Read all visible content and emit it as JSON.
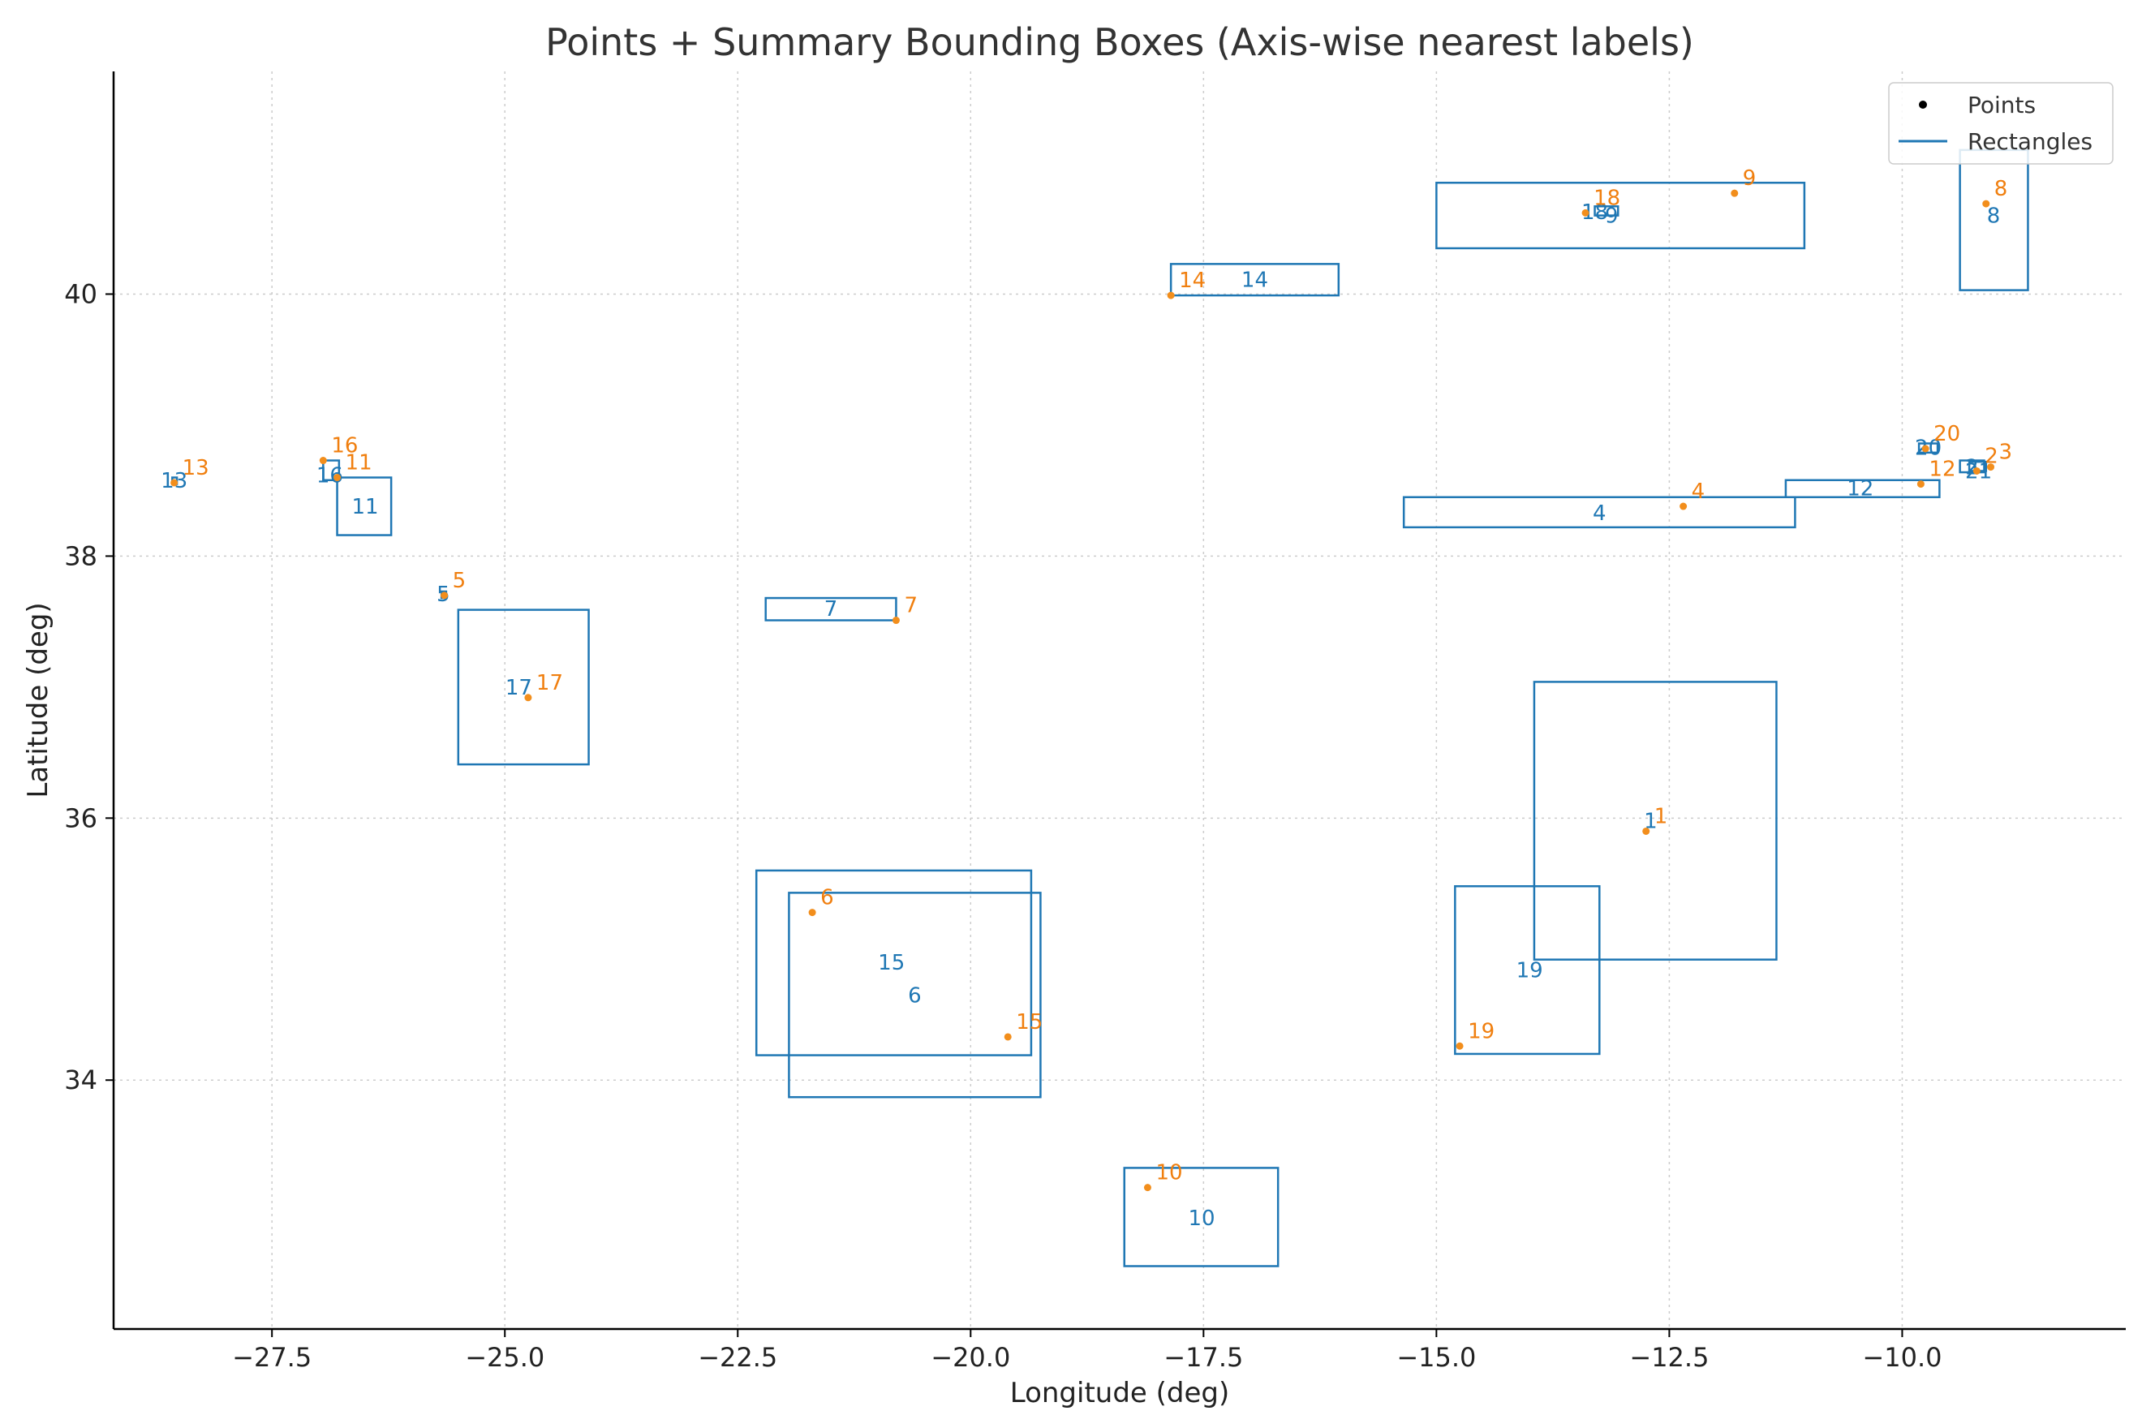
{
  "chart_data": {
    "type": "scatter",
    "title": "Points + Summary Bounding Boxes (Axis-wise nearest labels)",
    "xlabel": "Longitude (deg)",
    "ylabel": "Latitude (deg)",
    "xlim": [
      -29.2,
      -7.6
    ],
    "ylim": [
      32.1,
      41.7
    ],
    "xticks": [
      -27.5,
      -25.0,
      -22.5,
      -20.0,
      -17.5,
      -15.0,
      -12.5,
      -10.0
    ],
    "xtick_labels": [
      "−27.5",
      "−25.0",
      "−22.5",
      "−20.0",
      "−17.5",
      "−15.0",
      "−12.5",
      "−10.0"
    ],
    "yticks": [
      34,
      36,
      38,
      40
    ],
    "ytick_labels": [
      "34",
      "36",
      "38",
      "40"
    ],
    "grid": true,
    "legend_position": "top-right",
    "legend": [
      {
        "label": "Points",
        "kind": "marker"
      },
      {
        "label": "Rectangles",
        "kind": "line"
      }
    ],
    "colors": {
      "points": "#f28e1c",
      "point_labels": "#f07f0f",
      "rectangles": "#1f77b4"
    },
    "points": [
      {
        "label": "1",
        "x": -12.75,
        "y": 35.9
      },
      {
        "label": "2",
        "x": -9.2,
        "y": 38.65
      },
      {
        "label": "3",
        "x": -9.05,
        "y": 38.68
      },
      {
        "label": "4",
        "x": -12.35,
        "y": 38.38
      },
      {
        "label": "5",
        "x": -25.65,
        "y": 37.7
      },
      {
        "label": "6",
        "x": -21.7,
        "y": 35.28
      },
      {
        "label": "7",
        "x": -20.8,
        "y": 37.51
      },
      {
        "label": "8",
        "x": -9.1,
        "y": 40.69
      },
      {
        "label": "9",
        "x": -11.8,
        "y": 40.77
      },
      {
        "label": "10",
        "x": -18.1,
        "y": 33.18
      },
      {
        "label": "11",
        "x": -26.8,
        "y": 38.6
      },
      {
        "label": "12",
        "x": -9.8,
        "y": 38.55
      },
      {
        "label": "13",
        "x": -28.55,
        "y": 38.56
      },
      {
        "label": "14",
        "x": -17.85,
        "y": 39.99
      },
      {
        "label": "15",
        "x": -19.6,
        "y": 34.33
      },
      {
        "label": "16",
        "x": -26.95,
        "y": 38.73
      },
      {
        "label": "17",
        "x": -24.75,
        "y": 36.92
      },
      {
        "label": "18",
        "x": -13.4,
        "y": 40.62
      },
      {
        "label": "19",
        "x": -14.75,
        "y": 34.26
      },
      {
        "label": "20",
        "x": -9.75,
        "y": 38.82
      }
    ],
    "rectangles": [
      {
        "label": "1",
        "x0": -13.95,
        "x1": -11.35,
        "y0": 34.92,
        "y1": 37.04,
        "label_x": -12.7,
        "label_y": 35.98
      },
      {
        "label": "2",
        "x0": -9.38,
        "x1": -9.12,
        "y0": 38.64,
        "y1": 38.73,
        "label_x": -9.25,
        "label_y": 38.68
      },
      {
        "label": "4",
        "x0": -15.35,
        "x1": -11.15,
        "y0": 38.22,
        "y1": 38.45,
        "label_x": -13.25,
        "label_y": 38.33
      },
      {
        "label": "5",
        "x0": -25.68,
        "x1": -25.63,
        "y0": 37.68,
        "y1": 37.73,
        "label_x": -25.66,
        "label_y": 37.71
      },
      {
        "label": "6",
        "x0": -21.95,
        "x1": -19.25,
        "y0": 33.87,
        "y1": 35.43,
        "label_x": -20.6,
        "label_y": 34.65
      },
      {
        "label": "7",
        "x0": -22.2,
        "x1": -20.8,
        "y0": 37.51,
        "y1": 37.68,
        "label_x": -21.5,
        "label_y": 37.6
      },
      {
        "label": "8",
        "x0": -9.38,
        "x1": -8.65,
        "y0": 40.03,
        "y1": 41.1,
        "label_x": -9.02,
        "label_y": 40.6
      },
      {
        "label": "9",
        "x0": -13.3,
        "x1": -13.05,
        "y0": 40.6,
        "y1": 40.67,
        "label_x": -13.12,
        "label_y": 40.6
      },
      {
        "label": "10",
        "x0": -18.35,
        "x1": -16.7,
        "y0": 32.58,
        "y1": 33.33,
        "label_x": -17.52,
        "label_y": 32.95
      },
      {
        "label": "11",
        "x0": -26.8,
        "x1": -26.22,
        "y0": 38.16,
        "y1": 38.6,
        "label_x": -26.5,
        "label_y": 38.38
      },
      {
        "label": "12",
        "x0": -11.25,
        "x1": -9.6,
        "y0": 38.45,
        "y1": 38.58,
        "label_x": -10.45,
        "label_y": 38.52
      },
      {
        "label": "13",
        "x0": -28.57,
        "x1": -28.52,
        "y0": 38.55,
        "y1": 38.6,
        "label_x": -28.55,
        "label_y": 38.58
      },
      {
        "label": "14",
        "x0": -17.85,
        "x1": -16.05,
        "y0": 39.99,
        "y1": 40.23,
        "label_x": -16.95,
        "label_y": 40.11
      },
      {
        "label": "15",
        "x0": -22.3,
        "x1": -19.35,
        "y0": 34.19,
        "y1": 35.6,
        "label_x": -20.85,
        "label_y": 34.9
      },
      {
        "label": "16",
        "x0": -26.95,
        "x1": -26.78,
        "y0": 38.58,
        "y1": 38.73,
        "label_x": -26.88,
        "label_y": 38.62
      },
      {
        "label": "17",
        "x0": -25.5,
        "x1": -24.1,
        "y0": 36.41,
        "y1": 37.59,
        "label_x": -24.85,
        "label_y": 37.0
      },
      {
        "label": "18",
        "x0": -15.0,
        "x1": -11.05,
        "y0": 40.35,
        "y1": 40.85,
        "label_x": -13.3,
        "label_y": 40.63
      },
      {
        "label": "19",
        "x0": -14.8,
        "x1": -13.25,
        "y0": 34.2,
        "y1": 35.48,
        "label_x": -14.0,
        "label_y": 34.84
      },
      {
        "label": "20",
        "x0": -9.82,
        "x1": -9.62,
        "y0": 38.79,
        "y1": 38.86,
        "label_x": -9.72,
        "label_y": 38.83
      },
      {
        "label": "21",
        "x0": -9.28,
        "x1": -9.1,
        "y0": 38.65,
        "y1": 38.72,
        "label_x": -9.18,
        "label_y": 38.65
      }
    ]
  }
}
